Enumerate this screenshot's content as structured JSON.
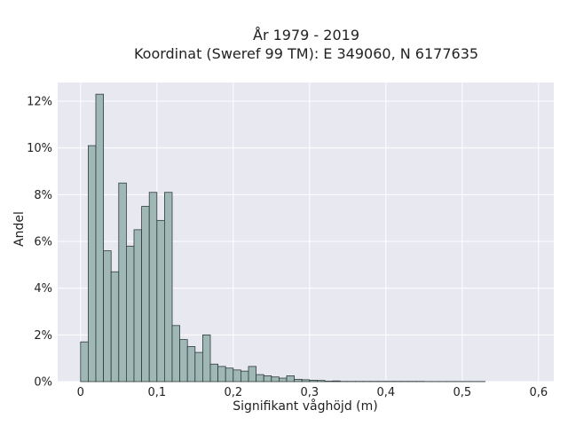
{
  "chart_data": {
    "type": "bar",
    "title_line1": "År 1979 - 2019",
    "title_line2": "Koordinat (Sweref 99 TM): E 349060, N 6177635",
    "xlabel": "Signifikant våghöjd (m)",
    "ylabel": "Andel",
    "bin_width": 0.01,
    "bin_start": 0,
    "values": [
      1.7,
      10.1,
      12.3,
      5.6,
      4.7,
      8.5,
      5.8,
      6.5,
      7.5,
      8.1,
      6.9,
      8.1,
      2.4,
      1.8,
      1.5,
      1.25,
      2.0,
      0.75,
      0.65,
      0.58,
      0.5,
      0.45,
      0.65,
      0.3,
      0.25,
      0.2,
      0.15,
      0.25,
      0.1,
      0.08,
      0.06,
      0.05,
      0.02,
      0.03,
      0.01,
      0.01,
      0.01,
      0.01,
      0.01,
      0.01,
      0.01,
      0.01,
      0.01,
      0.01,
      0.01,
      0.005,
      0.005,
      0.005,
      0.005,
      0.005,
      0.005,
      0.005,
      0.005
    ],
    "xlim": [
      -0.03,
      0.62
    ],
    "ylim": [
      0,
      12.8
    ],
    "x_ticks": [
      0,
      0.1,
      0.2,
      0.3,
      0.4,
      0.5,
      0.6
    ],
    "x_tick_labels": [
      "0",
      "0,1",
      "0,2",
      "0,3",
      "0,4",
      "0,5",
      "0,6"
    ],
    "y_ticks": [
      0,
      2,
      4,
      6,
      8,
      10,
      12
    ],
    "y_tick_labels": [
      "0%",
      "2%",
      "4%",
      "6%",
      "8%",
      "10%",
      "12%"
    ],
    "grid": true,
    "colors": {
      "bar_fill": "#9fb8b6",
      "bar_stroke": "#2f3b3a",
      "plot_bg": "#e8e8f1",
      "grid": "#ffffff"
    }
  }
}
